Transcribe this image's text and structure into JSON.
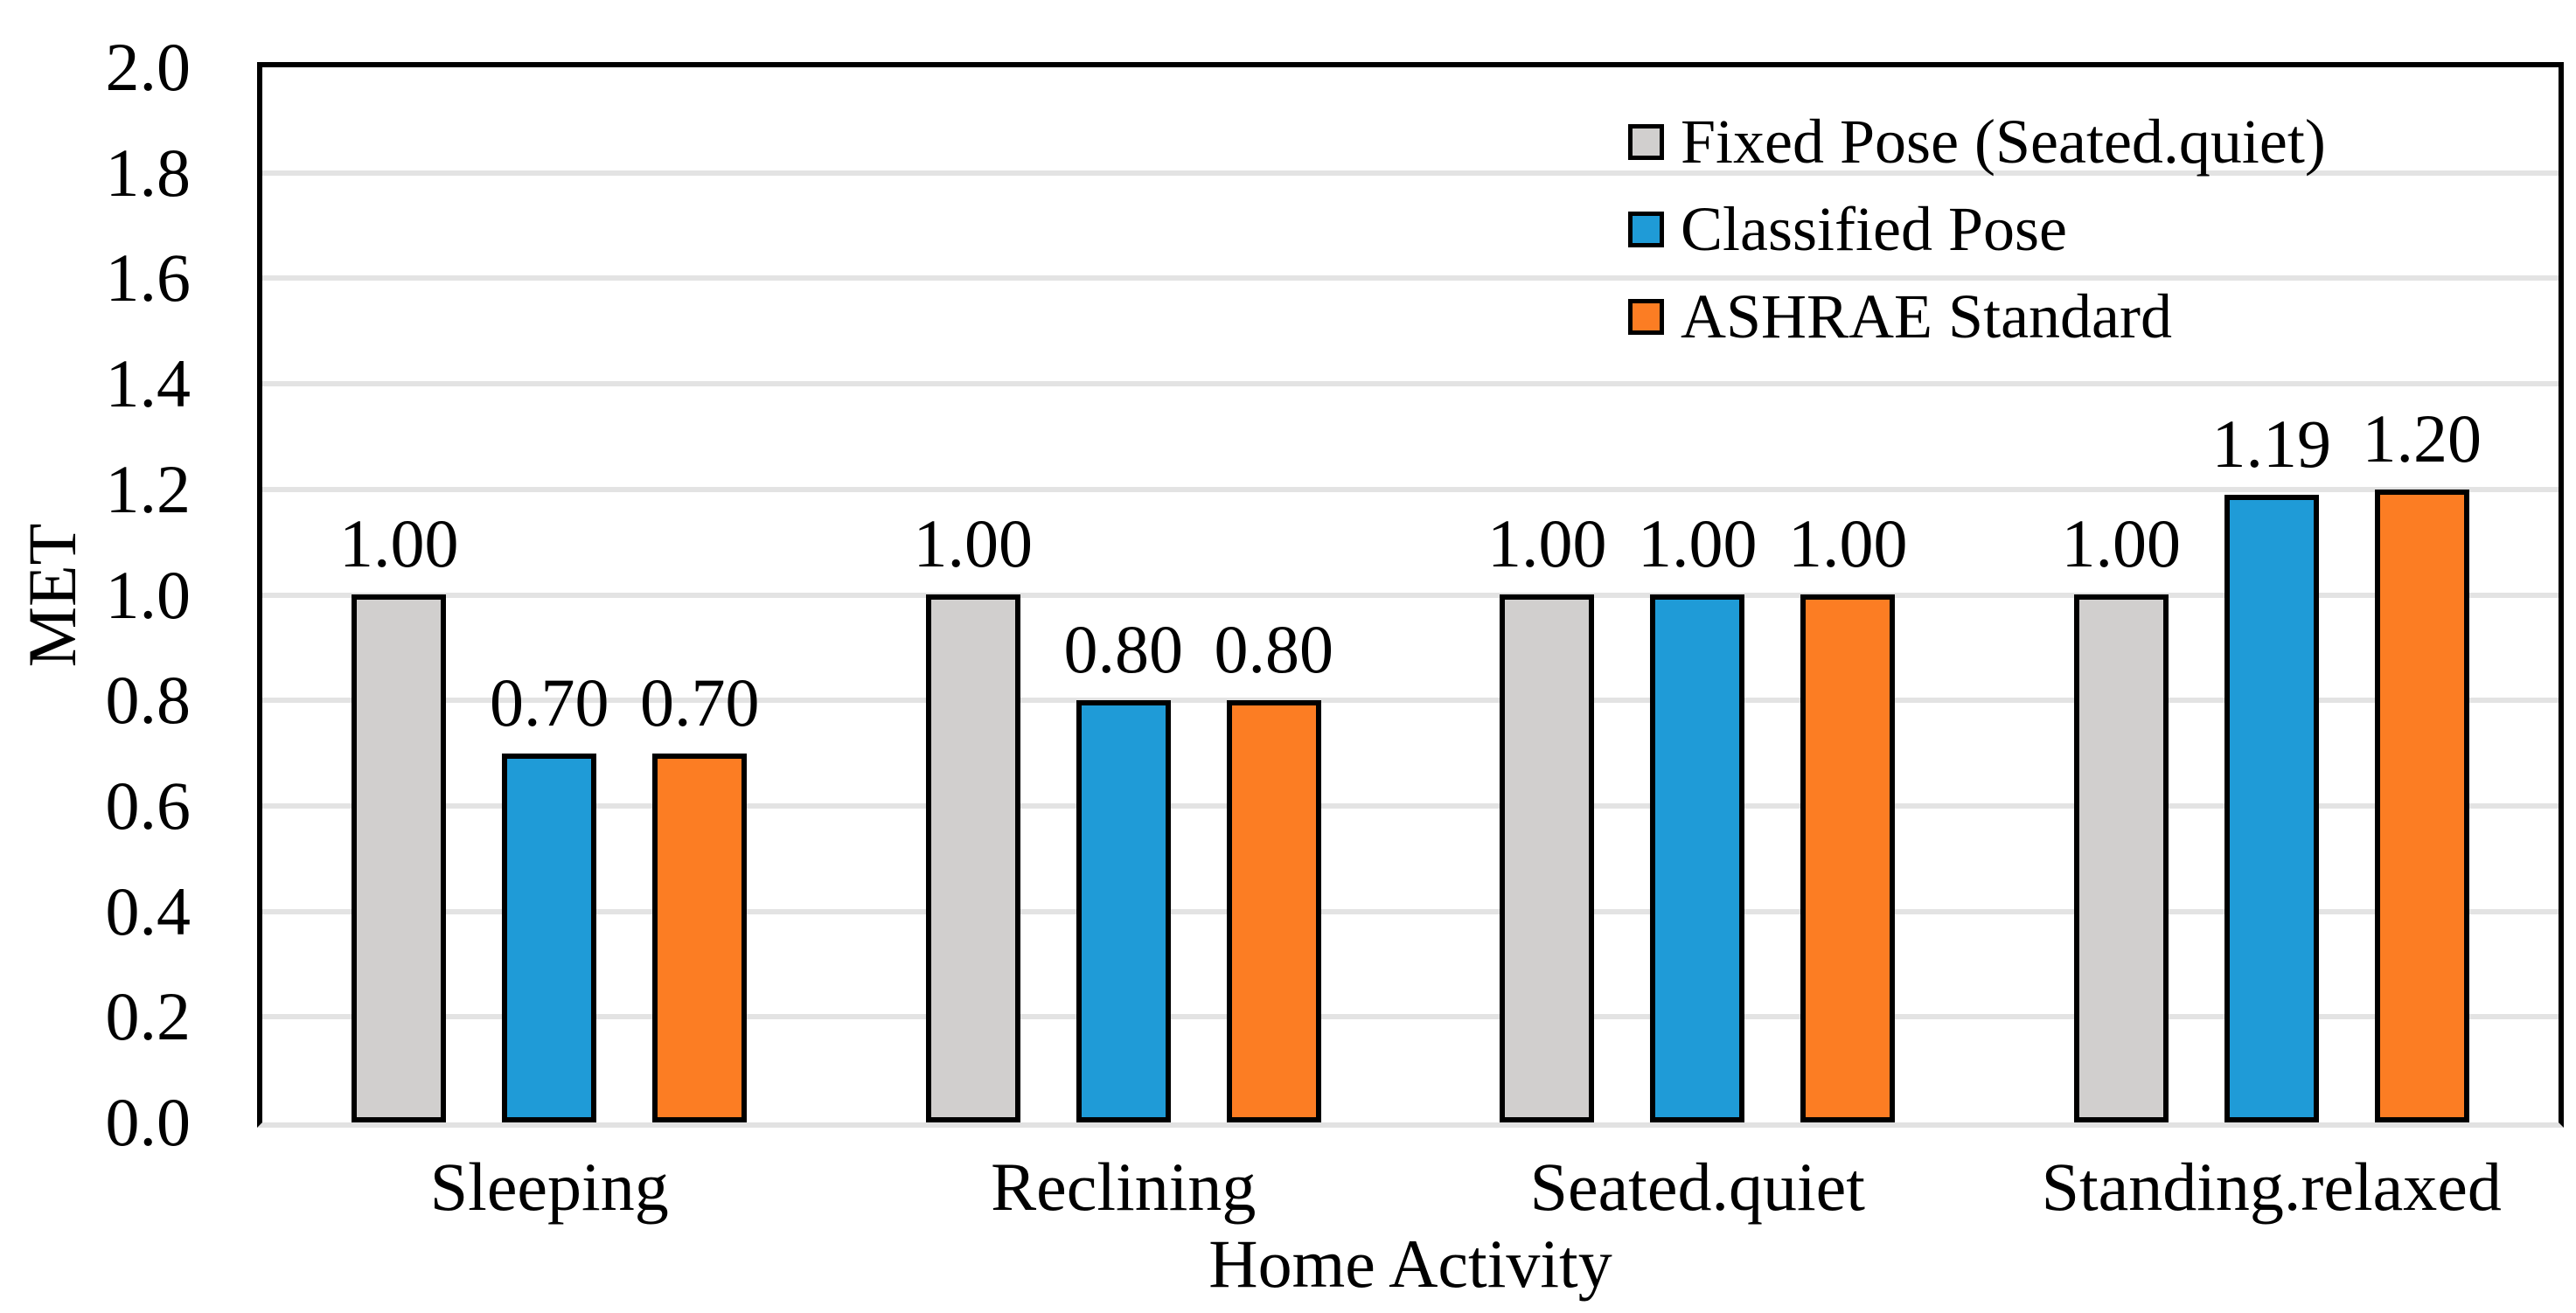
{
  "chart_data": {
    "type": "bar",
    "title": "",
    "xlabel": "Home Activity",
    "ylabel": "MET",
    "categories": [
      "Sleeping",
      "Reclining",
      "Seated.quiet",
      "Standing.relaxed"
    ],
    "series": [
      {
        "name": "Fixed Pose (Seated.quiet)",
        "color": "#D1CFCE",
        "values": [
          1.0,
          1.0,
          1.0,
          1.0
        ]
      },
      {
        "name": "Classified Pose",
        "color": "#1F9BD7",
        "values": [
          0.7,
          0.8,
          1.0,
          1.19
        ]
      },
      {
        "name": "ASHRAE Standard",
        "color": "#FC7D23",
        "values": [
          0.7,
          0.8,
          1.0,
          1.2
        ]
      }
    ],
    "value_label_decimals": 2,
    "ylim": [
      0.0,
      2.0
    ],
    "ytick_step": 0.2,
    "ytick_labels": [
      "0.0",
      "0.2",
      "0.4",
      "0.6",
      "0.8",
      "1.0",
      "1.2",
      "1.4",
      "1.6",
      "1.8",
      "2.0"
    ],
    "grid": true,
    "gridline_color": "#E3E3E3",
    "bar_border_color": "#000000",
    "plot_border_color": "#000000",
    "axis_line_color": "#E2E2E2",
    "legend_position": "top-right"
  }
}
